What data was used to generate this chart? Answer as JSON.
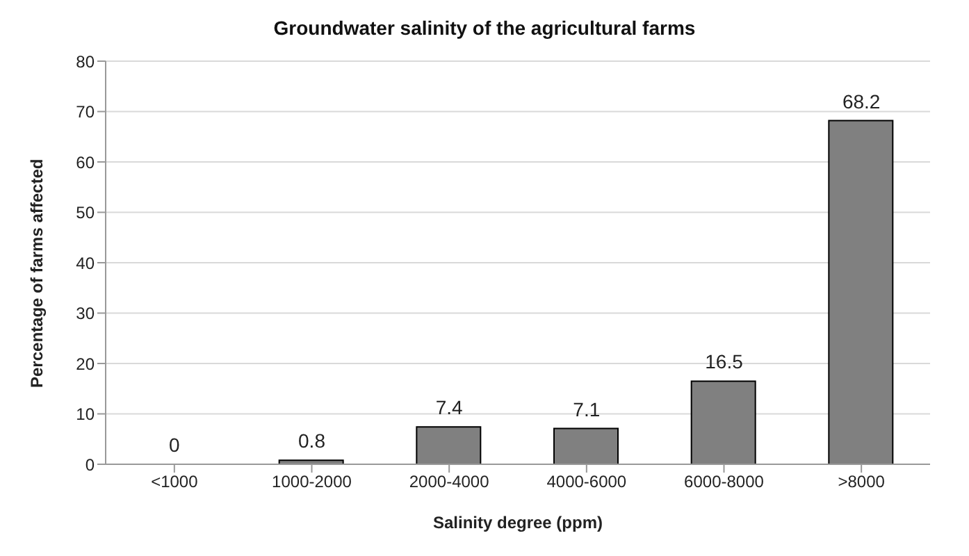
{
  "chart_data": {
    "type": "bar",
    "title": "Groundwater salinity of the agricultural farms",
    "xlabel": "Salinity degree (ppm)",
    "ylabel": "Percentage of farms affected",
    "categories": [
      "<1000",
      "1000-2000",
      "2000-4000",
      "4000-6000",
      "6000-8000",
      ">8000"
    ],
    "values": [
      0,
      0.8,
      7.4,
      7.1,
      16.5,
      68.2
    ],
    "color": "#808080",
    "ylim": [
      0,
      80
    ],
    "yticks": [
      0,
      10,
      20,
      30,
      40,
      50,
      60,
      70,
      80
    ],
    "grid": "y",
    "data_labels": true
  }
}
